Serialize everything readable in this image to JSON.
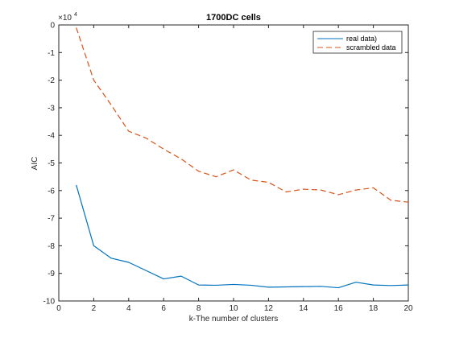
{
  "chart_data": {
    "type": "line",
    "title": "1700DC cells",
    "xlabel": "k-The number of clusters",
    "ylabel": "AIC",
    "exponent_label": "×10",
    "exponent_power": "4",
    "xlim": [
      0,
      20
    ],
    "ylim": [
      -10,
      0
    ],
    "xticks": [
      0,
      2,
      4,
      6,
      8,
      10,
      12,
      14,
      16,
      18,
      20
    ],
    "yticks": [
      0,
      -1,
      -2,
      -3,
      -4,
      -5,
      -6,
      -7,
      -8,
      -9,
      -10
    ],
    "grid": false,
    "legend_position": "top-right",
    "x": [
      1,
      2,
      3,
      4,
      5,
      6,
      7,
      8,
      9,
      10,
      11,
      12,
      13,
      14,
      15,
      16,
      17,
      18,
      19,
      20
    ],
    "series": [
      {
        "name": "real data)",
        "color": "#0072BD",
        "dash": "solid",
        "values": [
          -5.8,
          -8.0,
          -8.45,
          -8.6,
          -8.9,
          -9.2,
          -9.1,
          -9.42,
          -9.43,
          -9.4,
          -9.43,
          -9.5,
          -9.49,
          -9.48,
          -9.47,
          -9.52,
          -9.32,
          -9.42,
          -9.44,
          -9.42
        ]
      },
      {
        "name": "scrambled data",
        "color": "#D95319",
        "dash": "dashed",
        "values": [
          -0.1,
          -2.0,
          -2.9,
          -3.85,
          -4.1,
          -4.5,
          -4.85,
          -5.3,
          -5.5,
          -5.25,
          -5.62,
          -5.7,
          -6.05,
          -5.95,
          -5.98,
          -6.15,
          -5.98,
          -5.9,
          -6.35,
          -6.42
        ]
      }
    ]
  }
}
